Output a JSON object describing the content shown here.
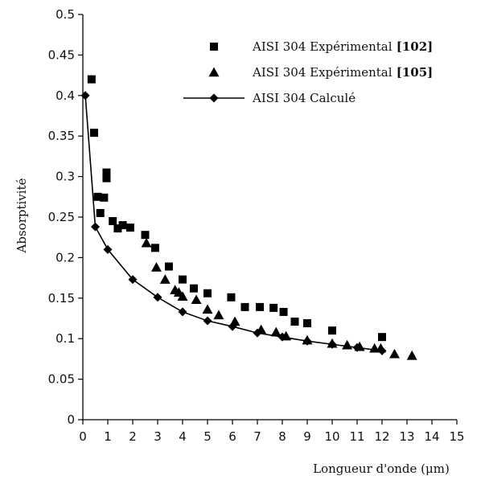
{
  "chart_data": {
    "type": "scatter",
    "xlabel": "Longueur d'onde (μm)",
    "ylabel": "Absorptivité",
    "xlim": [
      0,
      15
    ],
    "ylim": [
      0,
      0.5
    ],
    "xticks": [
      "0",
      "1",
      "2",
      "3",
      "4",
      "5",
      "6",
      "7",
      "8",
      "9",
      "10",
      "11",
      "12",
      "13",
      "14",
      "15"
    ],
    "yticks": [
      "0",
      "0.05",
      "0.1",
      "0.15",
      "0.2",
      "0.25",
      "0.3",
      "0.35",
      "0.4",
      "0.45",
      "0.5"
    ],
    "grid": false,
    "legend_position": "top-right",
    "series": [
      {
        "name": "AISI 304 Expérimental",
        "ref": "[102]",
        "marker": "square",
        "points": [
          [
            0.35,
            0.42
          ],
          [
            0.45,
            0.354
          ],
          [
            0.6,
            0.275
          ],
          [
            0.7,
            0.255
          ],
          [
            0.85,
            0.274
          ],
          [
            0.95,
            0.305
          ],
          [
            0.95,
            0.298
          ],
          [
            1.2,
            0.245
          ],
          [
            1.4,
            0.236
          ],
          [
            1.6,
            0.24
          ],
          [
            1.9,
            0.237
          ],
          [
            2.5,
            0.228
          ],
          [
            2.9,
            0.212
          ],
          [
            3.45,
            0.189
          ],
          [
            4.0,
            0.173
          ],
          [
            4.45,
            0.162
          ],
          [
            5.0,
            0.156
          ],
          [
            5.95,
            0.151
          ],
          [
            6.5,
            0.139
          ],
          [
            7.1,
            0.139
          ],
          [
            7.65,
            0.138
          ],
          [
            8.05,
            0.133
          ],
          [
            8.5,
            0.121
          ],
          [
            9.0,
            0.119
          ],
          [
            10.0,
            0.11
          ],
          [
            12.0,
            0.102
          ]
        ]
      },
      {
        "name": "AISI 304 Expérimental",
        "ref": "[105]",
        "marker": "triangle",
        "points": [
          [
            2.55,
            0.218
          ],
          [
            2.95,
            0.188
          ],
          [
            3.3,
            0.173
          ],
          [
            3.7,
            0.16
          ],
          [
            3.85,
            0.157
          ],
          [
            4.0,
            0.152
          ],
          [
            4.55,
            0.148
          ],
          [
            5.0,
            0.136
          ],
          [
            5.45,
            0.129
          ],
          [
            6.1,
            0.121
          ],
          [
            7.15,
            0.111
          ],
          [
            7.75,
            0.108
          ],
          [
            8.15,
            0.103
          ],
          [
            9.0,
            0.098
          ],
          [
            10.0,
            0.094
          ],
          [
            10.6,
            0.092
          ],
          [
            11.1,
            0.09
          ],
          [
            11.7,
            0.088
          ],
          [
            11.95,
            0.088
          ],
          [
            12.5,
            0.081
          ],
          [
            13.2,
            0.079
          ]
        ]
      },
      {
        "name": "AISI 304 Calculé",
        "marker": "diamond-line",
        "points": [
          [
            0.1,
            0.4
          ],
          [
            0.5,
            0.238
          ],
          [
            1.0,
            0.21
          ],
          [
            2.0,
            0.173
          ],
          [
            3.0,
            0.151
          ],
          [
            4.0,
            0.133
          ],
          [
            5.0,
            0.122
          ],
          [
            6.0,
            0.115
          ],
          [
            7.0,
            0.107
          ],
          [
            8.0,
            0.102
          ],
          [
            9.0,
            0.097
          ],
          [
            10.0,
            0.093
          ],
          [
            11.0,
            0.089
          ],
          [
            12.0,
            0.085
          ]
        ]
      }
    ]
  }
}
